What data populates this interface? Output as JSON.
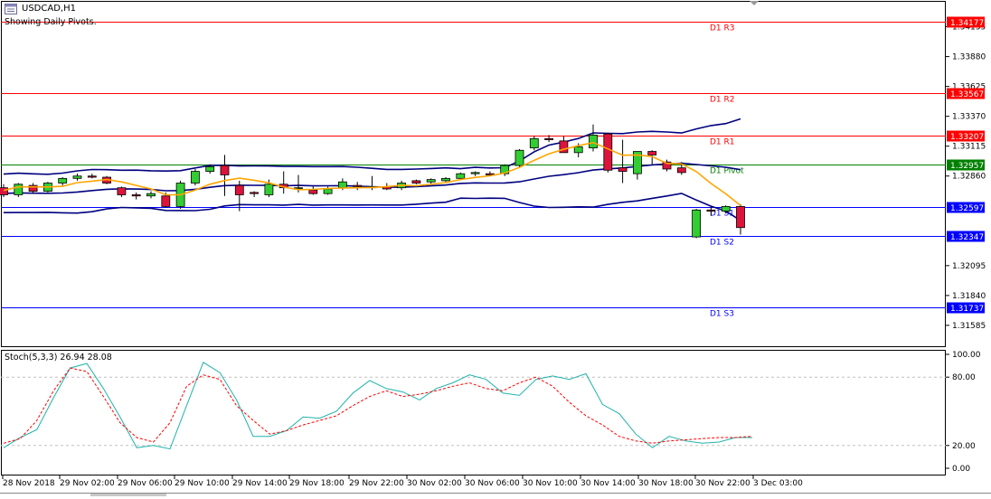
{
  "header": {
    "title": "USDCAD,H1",
    "pivot_note": "Showing Daily Pivots."
  },
  "colors": {
    "resistance": "#ff0000",
    "pivot": "#008000",
    "support": "#0000ff",
    "bollinger": "#000080",
    "ma": "#ffa500",
    "bull": "#32cd32",
    "bear": "#dc143c",
    "stoch_main": "#20b2aa",
    "stoch_signal": "#ff0000"
  },
  "price_axis": {
    "ticks": [
      "1.34135",
      "1.33880",
      "1.33625",
      "1.33370",
      "1.33115",
      "1.32860",
      "1.32095",
      "1.31840",
      "1.31585"
    ]
  },
  "pivots": [
    {
      "name": "D1 R3",
      "value": "1.34177",
      "kind": "resistance"
    },
    {
      "name": "D1 R2",
      "value": "1.33567",
      "kind": "resistance"
    },
    {
      "name": "D1 R1",
      "value": "1.33207",
      "kind": "resistance"
    },
    {
      "name": "D1 Pivot",
      "value": "1.32957",
      "kind": "pivot"
    },
    {
      "name": "D1 S1",
      "value": "1.32597",
      "kind": "support"
    },
    {
      "name": "D1 S2",
      "value": "1.32347",
      "kind": "support"
    },
    {
      "name": "D1 S3",
      "value": "1.31737",
      "kind": "support"
    }
  ],
  "time_axis": {
    "labels": [
      "28 Nov 2018",
      "29 Nov 02:00",
      "29 Nov 06:00",
      "29 Nov 10:00",
      "29 Nov 14:00",
      "29 Nov 18:00",
      "29 Nov 22:00",
      "30 Nov 02:00",
      "30 Nov 06:00",
      "30 Nov 10:00",
      "30 Nov 14:00",
      "30 Nov 18:00",
      "30 Nov 22:00",
      "3 Dec 03:00"
    ]
  },
  "stochastic": {
    "title": "Stoch(5,3,3) 26.94 28.08",
    "axis_labels": [
      "100.00",
      "80.00",
      "20.00",
      "0.00"
    ]
  },
  "chart_data": {
    "type": "candlestick",
    "symbol": "USDCAD",
    "timeframe": "H1",
    "candles": [
      {
        "o": 1.3276,
        "h": 1.3279,
        "l": 1.3268,
        "c": 1.327
      },
      {
        "o": 1.327,
        "h": 1.328,
        "l": 1.3268,
        "c": 1.3279
      },
      {
        "o": 1.3278,
        "h": 1.328,
        "l": 1.3271,
        "c": 1.3273
      },
      {
        "o": 1.3273,
        "h": 1.3281,
        "l": 1.3272,
        "c": 1.328
      },
      {
        "o": 1.328,
        "h": 1.3285,
        "l": 1.3278,
        "c": 1.3284
      },
      {
        "o": 1.3284,
        "h": 1.3288,
        "l": 1.3282,
        "c": 1.3286
      },
      {
        "o": 1.3286,
        "h": 1.3288,
        "l": 1.3284,
        "c": 1.3285
      },
      {
        "o": 1.3285,
        "h": 1.3286,
        "l": 1.3279,
        "c": 1.328
      },
      {
        "o": 1.3276,
        "h": 1.3277,
        "l": 1.3268,
        "c": 1.327
      },
      {
        "o": 1.327,
        "h": 1.3272,
        "l": 1.3266,
        "c": 1.3269
      },
      {
        "o": 1.3269,
        "h": 1.3273,
        "l": 1.3267,
        "c": 1.3271
      },
      {
        "o": 1.3269,
        "h": 1.3272,
        "l": 1.3259,
        "c": 1.326
      },
      {
        "o": 1.326,
        "h": 1.3282,
        "l": 1.3258,
        "c": 1.328
      },
      {
        "o": 1.328,
        "h": 1.3292,
        "l": 1.3278,
        "c": 1.329
      },
      {
        "o": 1.329,
        "h": 1.3296,
        "l": 1.3288,
        "c": 1.3294
      },
      {
        "o": 1.3295,
        "h": 1.3304,
        "l": 1.3269,
        "c": 1.3287
      },
      {
        "o": 1.3278,
        "h": 1.3282,
        "l": 1.3256,
        "c": 1.327
      },
      {
        "o": 1.3272,
        "h": 1.3273,
        "l": 1.3268,
        "c": 1.3271
      },
      {
        "o": 1.327,
        "h": 1.3283,
        "l": 1.3268,
        "c": 1.3279
      },
      {
        "o": 1.3279,
        "h": 1.329,
        "l": 1.3271,
        "c": 1.3276
      },
      {
        "o": 1.3276,
        "h": 1.3287,
        "l": 1.3272,
        "c": 1.3276
      },
      {
        "o": 1.3274,
        "h": 1.3277,
        "l": 1.327,
        "c": 1.3271
      },
      {
        "o": 1.3271,
        "h": 1.3277,
        "l": 1.327,
        "c": 1.3275
      },
      {
        "o": 1.3276,
        "h": 1.3284,
        "l": 1.3274,
        "c": 1.3281
      },
      {
        "o": 1.3278,
        "h": 1.3281,
        "l": 1.3274,
        "c": 1.3277
      },
      {
        "o": 1.3276,
        "h": 1.3286,
        "l": 1.3274,
        "c": 1.3277
      },
      {
        "o": 1.3277,
        "h": 1.328,
        "l": 1.3274,
        "c": 1.3275
      },
      {
        "o": 1.3276,
        "h": 1.3282,
        "l": 1.3274,
        "c": 1.328
      },
      {
        "o": 1.3282,
        "h": 1.3283,
        "l": 1.3279,
        "c": 1.328
      },
      {
        "o": 1.3281,
        "h": 1.3284,
        "l": 1.3279,
        "c": 1.3283
      },
      {
        "o": 1.3282,
        "h": 1.3285,
        "l": 1.3281,
        "c": 1.3284
      },
      {
        "o": 1.3284,
        "h": 1.3289,
        "l": 1.3283,
        "c": 1.3288
      },
      {
        "o": 1.3288,
        "h": 1.329,
        "l": 1.3286,
        "c": 1.3289
      },
      {
        "o": 1.3288,
        "h": 1.329,
        "l": 1.3286,
        "c": 1.3287
      },
      {
        "o": 1.3288,
        "h": 1.3296,
        "l": 1.3286,
        "c": 1.3295
      },
      {
        "o": 1.3295,
        "h": 1.3309,
        "l": 1.3293,
        "c": 1.3308
      },
      {
        "o": 1.331,
        "h": 1.332,
        "l": 1.3308,
        "c": 1.3318
      },
      {
        "o": 1.3318,
        "h": 1.3321,
        "l": 1.3315,
        "c": 1.3317
      },
      {
        "o": 1.3316,
        "h": 1.332,
        "l": 1.3306,
        "c": 1.3306
      },
      {
        "o": 1.3306,
        "h": 1.3314,
        "l": 1.3302,
        "c": 1.3311
      },
      {
        "o": 1.331,
        "h": 1.333,
        "l": 1.3307,
        "c": 1.3321
      },
      {
        "o": 1.3322,
        "h": 1.3323,
        "l": 1.3289,
        "c": 1.3291
      },
      {
        "o": 1.3293,
        "h": 1.3317,
        "l": 1.328,
        "c": 1.329
      },
      {
        "o": 1.3288,
        "h": 1.3307,
        "l": 1.3283,
        "c": 1.3307
      },
      {
        "o": 1.3307,
        "h": 1.3308,
        "l": 1.3296,
        "c": 1.3304
      },
      {
        "o": 1.3298,
        "h": 1.33,
        "l": 1.329,
        "c": 1.3292
      },
      {
        "o": 1.3293,
        "h": 1.3298,
        "l": 1.3287,
        "c": 1.3289
      },
      {
        "o": 1.3234,
        "h": 1.3258,
        "l": 1.3233,
        "c": 1.3257
      },
      {
        "o": 1.3257,
        "h": 1.326,
        "l": 1.3252,
        "c": 1.3256
      },
      {
        "o": 1.3256,
        "h": 1.3261,
        "l": 1.3254,
        "c": 1.326
      },
      {
        "o": 1.326,
        "h": 1.3262,
        "l": 1.3236,
        "c": 1.3242
      }
    ],
    "ylim": [
      1.3143,
      1.3434
    ],
    "stochastic": {
      "main": [
        18,
        27,
        34,
        62,
        88,
        92,
        70,
        45,
        18,
        20,
        17,
        55,
        93,
        84,
        60,
        28,
        28,
        33,
        45,
        44,
        50,
        66,
        77,
        70,
        67,
        60,
        70,
        75,
        82,
        78,
        66,
        64,
        78,
        81,
        78,
        83,
        56,
        48,
        30,
        18,
        28,
        24,
        22,
        23,
        27,
        27
      ],
      "signal": [
        22,
        26,
        42,
        68,
        88,
        85,
        63,
        40,
        27,
        23,
        40,
        72,
        82,
        78,
        55,
        42,
        30,
        33,
        38,
        42,
        46,
        55,
        63,
        68,
        63,
        65,
        68,
        72,
        75,
        70,
        68,
        75,
        80,
        72,
        58,
        46,
        38,
        28,
        24,
        22,
        24,
        25,
        26,
        27,
        27,
        28
      ],
      "ylim": [
        0,
        100
      ]
    }
  }
}
